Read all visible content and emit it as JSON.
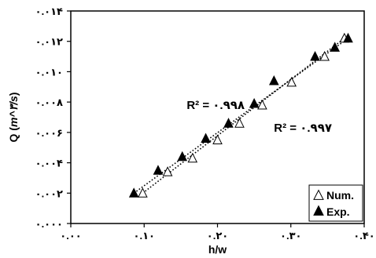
{
  "chart_data": {
    "type": "scatter",
    "title": "",
    "xlabel": "h/w",
    "ylabel": "Q (m^3/s)",
    "xlim": [
      0.0,
      0.4
    ],
    "ylim": [
      0.0,
      0.014
    ],
    "x_ticks": [
      0.0,
      0.1,
      0.2,
      0.3,
      0.4
    ],
    "y_ticks": [
      0.0,
      0.002,
      0.004,
      0.006,
      0.008,
      0.01,
      0.012,
      0.014
    ],
    "x_tick_labels": [
      "۰.۰۰",
      "۰.۱۰",
      "۰.۲۰",
      "۰.۳۰",
      "۰.۴۰"
    ],
    "y_tick_labels": [
      "۰.۰۰۰",
      "۰.۰۰۲",
      "۰.۰۰۴",
      "۰.۰۰۶",
      "۰.۰۰۸",
      "۰.۰۱۰",
      "۰.۰۱۲",
      "۰.۰۱۴"
    ],
    "ylabel_prefix": "Q (",
    "ylabel_unit": "m^۳/s",
    "ylabel_suffix": ")",
    "grid": false,
    "legend_position": "bottom-right",
    "series": [
      {
        "name": "Num.",
        "marker": "open-triangle",
        "x": [
          0.098,
          0.132,
          0.166,
          0.2,
          0.23,
          0.261,
          0.301,
          0.346,
          0.373
        ],
        "y": [
          0.002,
          0.0034,
          0.0043,
          0.0055,
          0.0066,
          0.0078,
          0.0093,
          0.011,
          0.0122
        ]
      },
      {
        "name": "Exp.",
        "marker": "filled-triangle",
        "x": [
          0.086,
          0.119,
          0.152,
          0.184,
          0.215,
          0.25,
          0.277,
          0.333,
          0.36,
          0.378
        ],
        "y": [
          0.002,
          0.0035,
          0.0044,
          0.0056,
          0.0066,
          0.0079,
          0.0094,
          0.011,
          0.0116,
          0.0122
        ]
      }
    ],
    "trendlines": [
      {
        "series": "Exp.",
        "x": [
          0.086,
          0.378
        ],
        "y": [
          0.002,
          0.0122
        ]
      },
      {
        "series": "Num.",
        "x": [
          0.098,
          0.373
        ],
        "y": [
          0.002,
          0.0122
        ]
      }
    ],
    "annotations": [
      {
        "text": "R² = ۰.۹۹۸",
        "x": 0.158,
        "y": 0.0078
      },
      {
        "text": "R² = ۰.۹۹۷",
        "x": 0.277,
        "y": 0.0063
      }
    ],
    "legend": {
      "num_label": "Num.",
      "exp_label": "Exp."
    }
  }
}
